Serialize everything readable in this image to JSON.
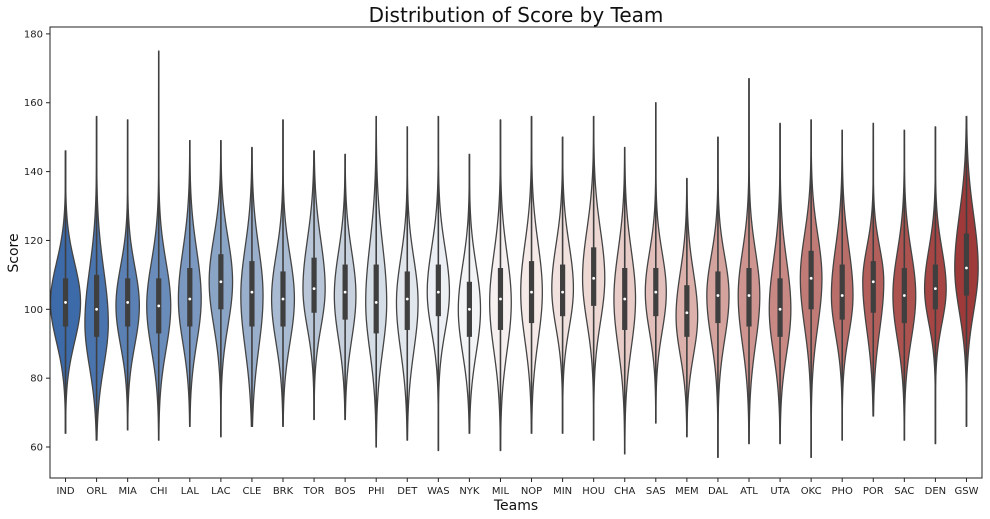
{
  "chart_data": {
    "type": "violin",
    "title": "Distribution of Score by Team",
    "xlabel": "Teams",
    "ylabel": "Score",
    "ylim": [
      51,
      182
    ],
    "yticks": [
      60,
      80,
      100,
      120,
      140,
      160,
      180
    ],
    "grid": false,
    "categories": [
      "IND",
      "ORL",
      "MIA",
      "CHI",
      "LAL",
      "LAC",
      "CLE",
      "BRK",
      "TOR",
      "BOS",
      "PHI",
      "DET",
      "WAS",
      "NYK",
      "MIL",
      "NOP",
      "MIN",
      "HOU",
      "CHA",
      "SAS",
      "MEM",
      "DAL",
      "ATL",
      "UTA",
      "OKC",
      "PHO",
      "POR",
      "SAC",
      "DEN",
      "GSW"
    ],
    "colors": [
      "#3d6aa8",
      "#4a74ae",
      "#5a80b4",
      "#6a8cba",
      "#7a98c0",
      "#8aa4c6",
      "#9aafcc",
      "#a9bbd2",
      "#b8c6d8",
      "#c8d2de",
      "#d5dde6",
      "#e2e7ed",
      "#ecf0f4",
      "#f3f4f6",
      "#f6f1f0",
      "#f5eae8",
      "#f1e2df",
      "#edd8d4",
      "#e8ccc8",
      "#e3bfbb",
      "#dcb1ac",
      "#d5a39e",
      "#ce9590",
      "#c88883",
      "#c17b76",
      "#ba6e69",
      "#b3605c",
      "#ac5350",
      "#a54645",
      "#9e3a3a"
    ],
    "series": [
      {
        "min": 64,
        "q1": 95,
        "median": 102,
        "q3": 109,
        "max": 146,
        "peak": 102,
        "width": 1.0
      },
      {
        "min": 62,
        "q1": 92,
        "median": 100,
        "q3": 110,
        "max": 156,
        "peak": 96,
        "width": 0.78
      },
      {
        "min": 65,
        "q1": 95,
        "median": 102,
        "q3": 109,
        "max": 155,
        "peak": 101,
        "width": 0.78
      },
      {
        "min": 62,
        "q1": 93,
        "median": 101,
        "q3": 109,
        "max": 175,
        "peak": 101,
        "width": 0.8
      },
      {
        "min": 66,
        "q1": 95,
        "median": 103,
        "q3": 112,
        "max": 149,
        "peak": 103,
        "width": 0.76
      },
      {
        "min": 63,
        "q1": 100,
        "median": 108,
        "q3": 116,
        "max": 149,
        "peak": 108,
        "width": 0.78
      },
      {
        "min": 66,
        "q1": 95,
        "median": 105,
        "q3": 114,
        "max": 147,
        "peak": 104,
        "width": 0.74
      },
      {
        "min": 66,
        "q1": 95,
        "median": 103,
        "q3": 111,
        "max": 155,
        "peak": 103,
        "width": 0.76
      },
      {
        "min": 68,
        "q1": 99,
        "median": 106,
        "q3": 115,
        "max": 146,
        "peak": 106,
        "width": 0.74
      },
      {
        "min": 68,
        "q1": 97,
        "median": 105,
        "q3": 113,
        "max": 145,
        "peak": 104,
        "width": 0.72
      },
      {
        "min": 60,
        "q1": 93,
        "median": 102,
        "q3": 113,
        "max": 156,
        "peak": 102,
        "width": 0.7
      },
      {
        "min": 62,
        "q1": 94,
        "median": 103,
        "q3": 111,
        "max": 153,
        "peak": 102,
        "width": 0.72
      },
      {
        "min": 59,
        "q1": 98,
        "median": 105,
        "q3": 113,
        "max": 156,
        "peak": 105,
        "width": 0.74
      },
      {
        "min": 64,
        "q1": 92,
        "median": 100,
        "q3": 108,
        "max": 145,
        "peak": 100,
        "width": 0.74
      },
      {
        "min": 59,
        "q1": 94,
        "median": 103,
        "q3": 112,
        "max": 155,
        "peak": 102,
        "width": 0.72
      },
      {
        "min": 64,
        "q1": 96,
        "median": 105,
        "q3": 114,
        "max": 156,
        "peak": 105,
        "width": 0.72
      },
      {
        "min": 64,
        "q1": 98,
        "median": 105,
        "q3": 113,
        "max": 150,
        "peak": 106,
        "width": 0.72
      },
      {
        "min": 62,
        "q1": 101,
        "median": 109,
        "q3": 118,
        "max": 156,
        "peak": 109,
        "width": 0.74
      },
      {
        "min": 58,
        "q1": 94,
        "median": 103,
        "q3": 112,
        "max": 147,
        "peak": 103,
        "width": 0.72
      },
      {
        "min": 67,
        "q1": 98,
        "median": 105,
        "q3": 112,
        "max": 160,
        "peak": 105,
        "width": 0.7
      },
      {
        "min": 63,
        "q1": 92,
        "median": 99,
        "q3": 107,
        "max": 138,
        "peak": 98,
        "width": 0.72
      },
      {
        "min": 57,
        "q1": 96,
        "median": 104,
        "q3": 111,
        "max": 150,
        "peak": 104,
        "width": 0.74
      },
      {
        "min": 61,
        "q1": 95,
        "median": 104,
        "q3": 112,
        "max": 167,
        "peak": 104,
        "width": 0.72
      },
      {
        "min": 61,
        "q1": 92,
        "median": 100,
        "q3": 109,
        "max": 154,
        "peak": 100,
        "width": 0.72
      },
      {
        "min": 57,
        "q1": 100,
        "median": 109,
        "q3": 117,
        "max": 155,
        "peak": 109,
        "width": 0.72
      },
      {
        "min": 62,
        "q1": 97,
        "median": 104,
        "q3": 113,
        "max": 152,
        "peak": 104,
        "width": 0.72
      },
      {
        "min": 69,
        "q1": 99,
        "median": 108,
        "q3": 114,
        "max": 154,
        "peak": 108,
        "width": 0.7
      },
      {
        "min": 62,
        "q1": 96,
        "median": 104,
        "q3": 112,
        "max": 152,
        "peak": 104,
        "width": 0.76
      },
      {
        "min": 61,
        "q1": 100,
        "median": 106,
        "q3": 113,
        "max": 153,
        "peak": 106,
        "width": 0.72
      },
      {
        "min": 66,
        "q1": 104,
        "median": 112,
        "q3": 122,
        "max": 156,
        "peak": 112,
        "width": 0.78
      }
    ]
  }
}
